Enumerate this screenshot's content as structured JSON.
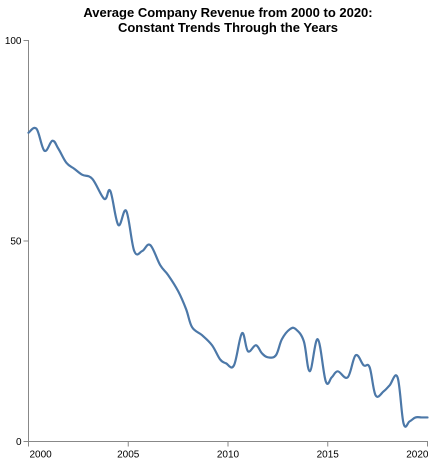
{
  "chart_data": {
    "type": "line",
    "title": [
      "Average Company Revenue from 2000 to 2020:",
      "Constant Trends Through the Years"
    ],
    "xlabel": "",
    "ylabel": "",
    "xlim": [
      2000,
      2020
    ],
    "ylim": [
      0,
      100
    ],
    "x_ticks": [
      2000,
      2005,
      2010,
      2015,
      2020
    ],
    "y_ticks": [
      0,
      50,
      100
    ],
    "grid": false,
    "line_color": "#4c78a8",
    "series": [
      {
        "x": [
          2000.0,
          2000.4,
          2000.8,
          2001.2,
          2001.5,
          2001.9,
          2002.3,
          2002.7,
          2003.2,
          2003.8,
          2004.1,
          2004.5,
          2004.9,
          2005.3,
          2005.7,
          2006.1,
          2006.6,
          2007.0,
          2007.5,
          2007.9,
          2008.2,
          2008.7,
          2009.2,
          2009.6,
          2009.9,
          2010.3,
          2010.7,
          2011.0,
          2011.4,
          2011.7,
          2012.0,
          2012.4,
          2012.7,
          2013.1,
          2013.4,
          2013.8,
          2014.1,
          2014.5,
          2014.9,
          2015.2,
          2015.5,
          2016.0,
          2016.4,
          2016.8,
          2017.1,
          2017.4,
          2017.8,
          2018.1,
          2018.5,
          2018.8,
          2019.1,
          2019.4,
          2019.7,
          2020.0
        ],
        "y": [
          77,
          78,
          72.5,
          75,
          73,
          69.5,
          68,
          66.5,
          65.5,
          60.5,
          62.5,
          54,
          57.5,
          47.5,
          47.5,
          49,
          44,
          41.5,
          37.5,
          33,
          28.5,
          26.5,
          24,
          20.5,
          19.5,
          19,
          27,
          22.5,
          24,
          22,
          21,
          21.5,
          25.5,
          28,
          28,
          25,
          17.5,
          25.5,
          15,
          16,
          17.5,
          16,
          21.5,
          19,
          18.5,
          11.5,
          12.5,
          14,
          16,
          4.5,
          5,
          6,
          6,
          6
        ]
      }
    ]
  }
}
